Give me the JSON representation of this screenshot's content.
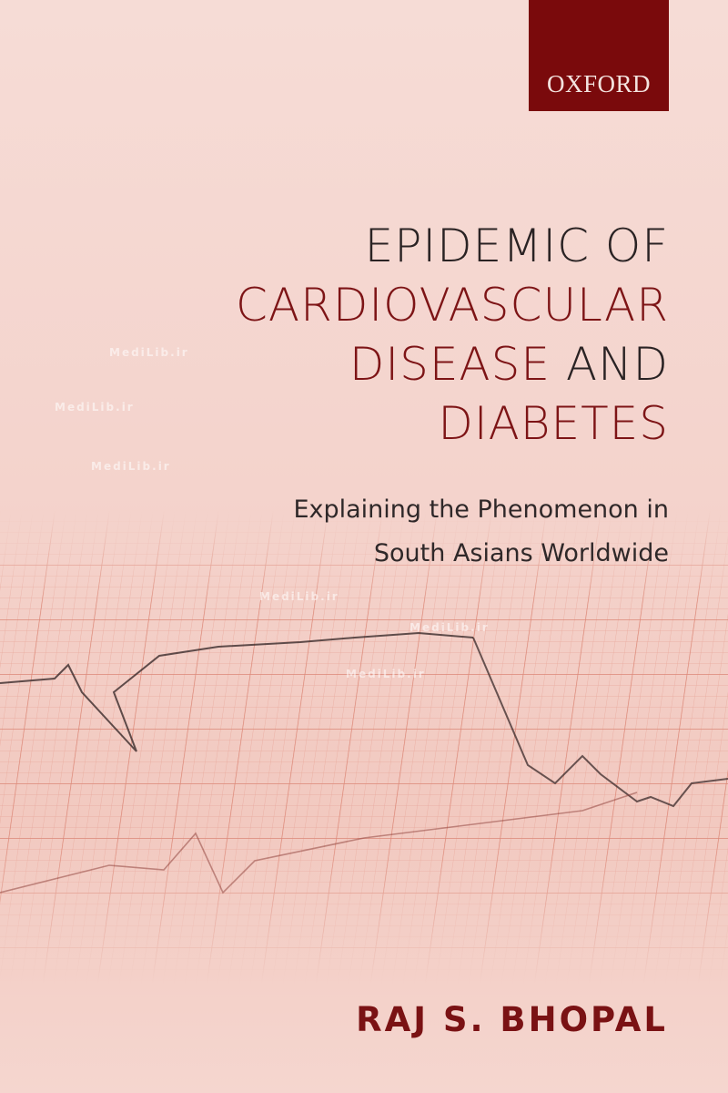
{
  "publisher": {
    "name": "OXFORD",
    "color": "#7a0a0c"
  },
  "title": {
    "line1": "EPIDEMIC OF",
    "line2": "CARDIOVASCULAR",
    "line3_a": "DISEASE",
    "line3_b": " AND",
    "line4": "DIABETES",
    "accent_color": "#7d1416"
  },
  "subtitle": {
    "line1": "Explaining the Phenomenon in",
    "line2": "South Asians Worldwide"
  },
  "author": "RAJ S. BHOPAL",
  "watermark": "MediLib.ir",
  "background_image": "ecg-paper-trace"
}
